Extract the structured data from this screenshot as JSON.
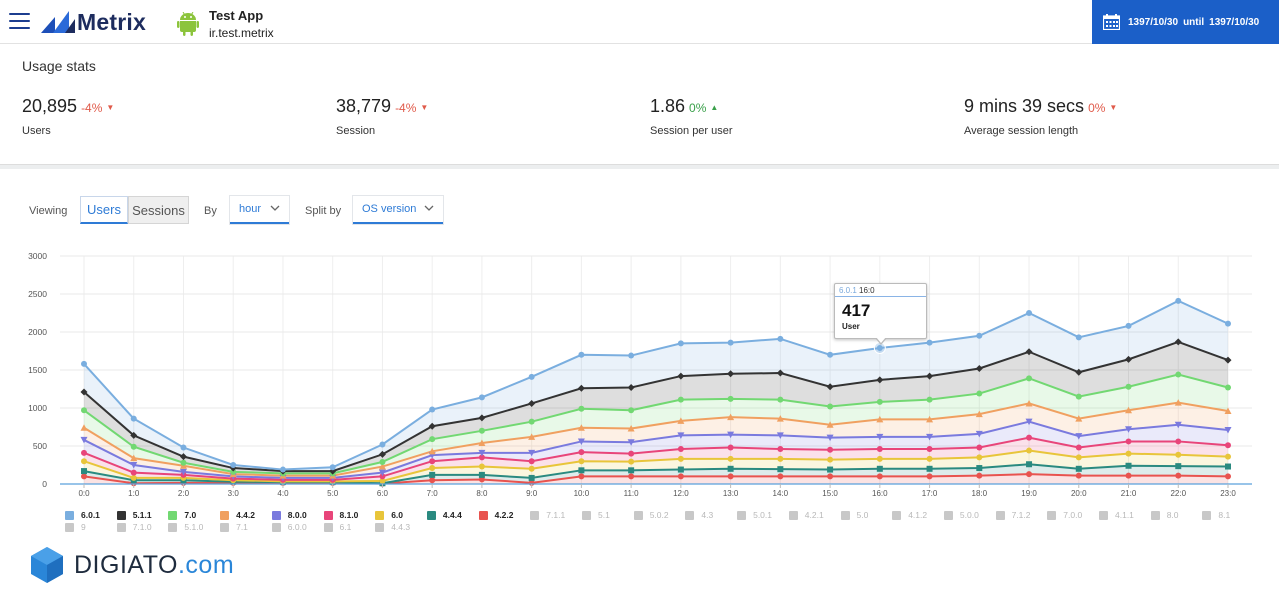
{
  "header": {
    "logo_text": "Metrix",
    "app_name": "Test App",
    "app_package": "ir.test.metrix",
    "date_from": "1397/10/30",
    "date_until_label": "until",
    "date_to": "1397/10/30"
  },
  "stats": {
    "title": "Usage stats",
    "items": [
      {
        "value": "20,895",
        "change": "-4%",
        "direction": "down",
        "label": "Users"
      },
      {
        "value": "38,779",
        "change": "-4%",
        "direction": "down",
        "label": "Session"
      },
      {
        "value": "1.86",
        "change": "0%",
        "direction": "up",
        "label": "Session per user"
      },
      {
        "value": "9 mins 39 secs",
        "change": "0%",
        "direction": "down",
        "label": "Average session length"
      }
    ]
  },
  "controls": {
    "viewing_label": "Viewing",
    "view_options": [
      "Users",
      "Sessions"
    ],
    "selected_view": "Users",
    "by_label": "By",
    "by_value": "hour",
    "split_label": "Split by",
    "split_value": "OS version"
  },
  "tooltip": {
    "version": "6.0.1",
    "time": "16:0",
    "value": "417",
    "label": "User"
  },
  "chart_data": {
    "type": "area",
    "stacked": true,
    "x": [
      "0:0",
      "1:0",
      "2:0",
      "3:0",
      "4:0",
      "5:0",
      "6:0",
      "7:0",
      "8:0",
      "9:0",
      "10:0",
      "11:0",
      "12:0",
      "13:0",
      "14:0",
      "15:0",
      "16:0",
      "17:0",
      "18:0",
      "19:0",
      "20:0",
      "21:0",
      "22:0",
      "23:0"
    ],
    "ylim": [
      0,
      3000
    ],
    "yticks": [
      0,
      500,
      1000,
      1500,
      2000,
      2500,
      3000
    ],
    "grid": true,
    "legend_position": "bottom",
    "series": [
      {
        "name": "4.2.2",
        "color": "#e8534f",
        "marker": "circle",
        "values": [
          100,
          10,
          15,
          15,
          15,
          15,
          5,
          50,
          60,
          15,
          100,
          100,
          100,
          100,
          100,
          100,
          100,
          100,
          110,
          130,
          110,
          110,
          110,
          100
        ]
      },
      {
        "name": "4.4.4",
        "color": "#2a8a80",
        "marker": "square",
        "values": [
          170,
          50,
          50,
          30,
          25,
          25,
          10,
          120,
          120,
          80,
          180,
          180,
          190,
          200,
          195,
          190,
          200,
          200,
          210,
          260,
          200,
          240,
          235,
          230
        ]
      },
      {
        "name": "6.0",
        "color": "#e8c53a",
        "marker": "circle",
        "values": [
          300,
          80,
          80,
          50,
          35,
          35,
          40,
          210,
          230,
          200,
          300,
          295,
          330,
          330,
          330,
          320,
          330,
          330,
          350,
          440,
          350,
          400,
          385,
          360
        ]
      },
      {
        "name": "8.1.0",
        "color": "#e8457a",
        "marker": "circle",
        "values": [
          410,
          150,
          120,
          70,
          55,
          55,
          100,
          300,
          350,
          300,
          420,
          400,
          460,
          480,
          460,
          450,
          460,
          460,
          480,
          610,
          480,
          560,
          560,
          510
        ]
      },
      {
        "name": "8.0.0",
        "color": "#7a7ade",
        "marker": "triangle-down",
        "values": [
          580,
          250,
          160,
          100,
          80,
          80,
          150,
          380,
          410,
          410,
          560,
          550,
          640,
          650,
          640,
          610,
          620,
          620,
          660,
          820,
          630,
          720,
          780,
          710
        ]
      },
      {
        "name": "4.4.2",
        "color": "#f0a060",
        "marker": "triangle",
        "values": [
          740,
          340,
          240,
          130,
          110,
          110,
          230,
          430,
          540,
          620,
          740,
          730,
          830,
          880,
          860,
          780,
          850,
          850,
          920,
          1060,
          860,
          970,
          1070,
          960
        ]
      },
      {
        "name": "7.0",
        "color": "#72d872",
        "marker": "circle",
        "values": [
          970,
          490,
          280,
          160,
          140,
          140,
          290,
          590,
          700,
          820,
          990,
          970,
          1110,
          1120,
          1110,
          1020,
          1080,
          1110,
          1190,
          1390,
          1150,
          1280,
          1440,
          1270
        ]
      },
      {
        "name": "5.1.1",
        "color": "#333333",
        "marker": "diamond",
        "values": [
          1210,
          640,
          360,
          210,
          170,
          170,
          390,
          760,
          870,
          1060,
          1260,
          1270,
          1420,
          1450,
          1460,
          1280,
          1370,
          1420,
          1520,
          1740,
          1470,
          1640,
          1870,
          1630
        ]
      },
      {
        "name": "6.0.1",
        "color": "#7aaedf",
        "marker": "circle",
        "values": [
          1580,
          860,
          480,
          250,
          190,
          220,
          520,
          980,
          1140,
          1410,
          1700,
          1690,
          1850,
          1860,
          1910,
          1700,
          1790,
          1860,
          1950,
          2250,
          1930,
          2080,
          2410,
          2110
        ]
      }
    ]
  },
  "legend": {
    "active": [
      {
        "name": "6.0.1",
        "color": "#7aaedf"
      },
      {
        "name": "5.1.1",
        "color": "#333333"
      },
      {
        "name": "7.0",
        "color": "#72d872"
      },
      {
        "name": "4.4.2",
        "color": "#f0a060"
      },
      {
        "name": "8.0.0",
        "color": "#7a7ade"
      },
      {
        "name": "8.1.0",
        "color": "#e8457a"
      },
      {
        "name": "6.0",
        "color": "#e8c53a"
      },
      {
        "name": "4.4.4",
        "color": "#2a8a80"
      },
      {
        "name": "4.2.2",
        "color": "#e8534f"
      }
    ],
    "inactive": [
      "7.1.1",
      "5.1",
      "5.0.2",
      "4.3",
      "5.0.1",
      "4.2.1",
      "5.0",
      "4.1.2",
      "5.0.0",
      "7.1.2",
      "7.0.0",
      "4.1.1",
      "8.0",
      "8.1",
      "9",
      "7.1.0",
      "5.1.0",
      "7.1",
      "6.0.0",
      "6.1",
      "4.4.3"
    ],
    "inactive_color": "#c8c8c8"
  },
  "watermark": {
    "text_dark": "DIGIATO",
    "text_blue": ".com"
  }
}
